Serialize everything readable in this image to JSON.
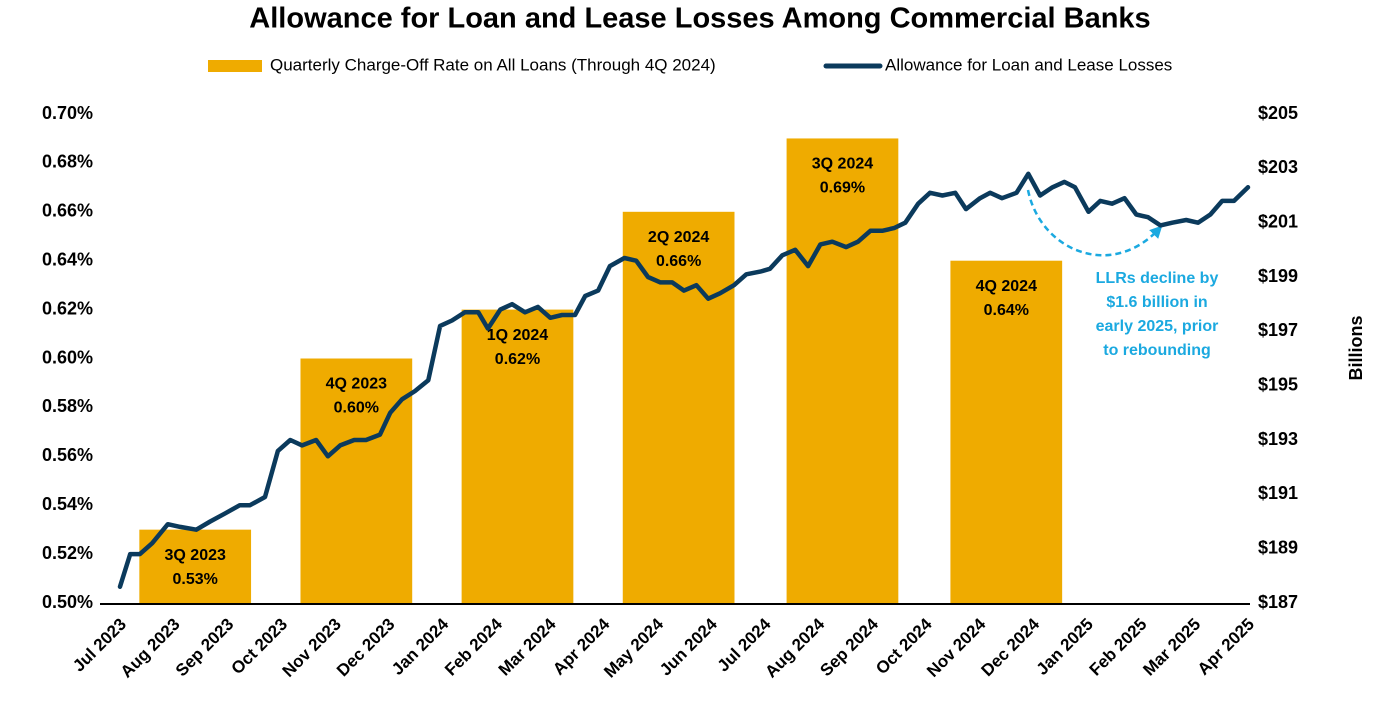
{
  "chart_data": {
    "type": "bar_line",
    "title": "Allowance for Loan and Lease Losses Among Commercial Banks",
    "legend": "top",
    "xlim": [
      0,
      21
    ],
    "xticks": [
      {
        "value": 0,
        "label": "Jul 2023"
      },
      {
        "value": 1,
        "label": "Aug 2023"
      },
      {
        "value": 2,
        "label": "Sep 2023"
      },
      {
        "value": 3,
        "label": "Oct 2023"
      },
      {
        "value": 4,
        "label": "Nov 2023"
      },
      {
        "value": 5,
        "label": "Dec 2023"
      },
      {
        "value": 6,
        "label": "Jan 2024"
      },
      {
        "value": 7,
        "label": "Feb 2024"
      },
      {
        "value": 8,
        "label": "Mar 2024"
      },
      {
        "value": 9,
        "label": "Apr 2024"
      },
      {
        "value": 10,
        "label": "May 2024"
      },
      {
        "value": 11,
        "label": "Jun 2024"
      },
      {
        "value": 12,
        "label": "Jul 2024"
      },
      {
        "value": 13,
        "label": "Aug 2024"
      },
      {
        "value": 14,
        "label": "Sep 2024"
      },
      {
        "value": 15,
        "label": "Oct 2024"
      },
      {
        "value": 16,
        "label": "Nov 2024"
      },
      {
        "value": 17,
        "label": "Dec 2024"
      },
      {
        "value": 18,
        "label": "Jan 2025"
      },
      {
        "value": 19,
        "label": "Feb 2025"
      },
      {
        "value": 20,
        "label": "Mar 2025"
      },
      {
        "value": 21,
        "label": "Apr 2025"
      }
    ],
    "ylim": [
      0.5,
      0.7
    ],
    "yticks": [
      {
        "value": 0.5,
        "label": "0.50%"
      },
      {
        "value": 0.52,
        "label": "0.52%"
      },
      {
        "value": 0.54,
        "label": "0.54%"
      },
      {
        "value": 0.56,
        "label": "0.56%"
      },
      {
        "value": 0.58,
        "label": "0.58%"
      },
      {
        "value": 0.6,
        "label": "0.60%"
      },
      {
        "value": 0.62,
        "label": "0.62%"
      },
      {
        "value": 0.64,
        "label": "0.64%"
      },
      {
        "value": 0.66,
        "label": "0.66%"
      },
      {
        "value": 0.68,
        "label": "0.68%"
      },
      {
        "value": 0.7,
        "label": "0.70%"
      }
    ],
    "y2lim": [
      187,
      205
    ],
    "y2ticks": [
      {
        "value": 187,
        "label": "$187"
      },
      {
        "value": 189,
        "label": "$189"
      },
      {
        "value": 191,
        "label": "$191"
      },
      {
        "value": 193,
        "label": "$193"
      },
      {
        "value": 195,
        "label": "$195"
      },
      {
        "value": 197,
        "label": "$197"
      },
      {
        "value": 199,
        "label": "$199"
      },
      {
        "value": 201,
        "label": "$201"
      },
      {
        "value": 203,
        "label": "$203"
      },
      {
        "value": 205,
        "label": "$205"
      }
    ],
    "y2label": "Billions",
    "annotation": {
      "lines": [
        "LLRs decline by",
        "$1.6 billion in",
        "early 2025, prior",
        "to rebounding"
      ],
      "color": "#1ba9e0"
    },
    "series": [
      {
        "name": "Quarterly Charge-Off Rate on All Loans (Through 4Q 2024)",
        "type": "bar",
        "color": "#efab00",
        "categories": [
          "3Q 2023",
          "4Q 2023",
          "1Q 2024",
          "2Q 2024",
          "3Q 2024",
          "4Q 2024"
        ],
        "x": [
          1.4,
          4.4,
          7.4,
          10.4,
          13.45,
          16.5
        ],
        "values": [
          0.53,
          0.6,
          0.62,
          0.66,
          0.69,
          0.64
        ],
        "value_labels": [
          "0.53%",
          "0.60%",
          "0.62%",
          "0.66%",
          "0.69%",
          "0.64%"
        ]
      },
      {
        "name": "Allowance for Loan and Lease Losses",
        "type": "line",
        "color": "#0b3a5c",
        "axis": "y2",
        "x": [
          0,
          0.19,
          0.37,
          0.6,
          0.89,
          1.12,
          1.42,
          1.68,
          1.96,
          2.23,
          2.42,
          2.7,
          2.94,
          3.17,
          3.39,
          3.65,
          3.87,
          4.1,
          4.36,
          4.58,
          4.84,
          5.03,
          5.25,
          5.49,
          5.74,
          5.96,
          6.18,
          6.42,
          6.67,
          6.85,
          7.08,
          7.3,
          7.54,
          7.78,
          8.01,
          8.23,
          8.47,
          8.66,
          8.9,
          9.12,
          9.39,
          9.61,
          9.83,
          10.06,
          10.28,
          10.5,
          10.73,
          10.95,
          11.17,
          11.43,
          11.66,
          11.92,
          12.1,
          12.33,
          12.57,
          12.81,
          13.04,
          13.26,
          13.52,
          13.74,
          13.97,
          14.19,
          14.41,
          14.62,
          14.86,
          15.08,
          15.31,
          15.55,
          15.75,
          16.01,
          16.2,
          16.42,
          16.69,
          16.91,
          17.13,
          17.36,
          17.58,
          17.78,
          18.03,
          18.25,
          18.47,
          18.7,
          18.92,
          19.14,
          19.37,
          19.59,
          19.85,
          20.07,
          20.3,
          20.52,
          20.74,
          21
        ],
        "values": [
          187.6,
          188.8,
          188.8,
          189.2,
          189.9,
          189.8,
          189.7,
          190.0,
          190.3,
          190.6,
          190.6,
          190.9,
          192.6,
          193.0,
          192.8,
          193.0,
          192.4,
          192.8,
          193.0,
          193.0,
          193.2,
          194.0,
          194.5,
          194.8,
          195.2,
          197.2,
          197.4,
          197.7,
          197.7,
          197.1,
          197.8,
          198.0,
          197.7,
          197.9,
          197.5,
          197.6,
          197.6,
          198.3,
          198.5,
          199.4,
          199.7,
          199.6,
          199.0,
          198.8,
          198.8,
          198.5,
          198.7,
          198.2,
          198.4,
          198.7,
          199.1,
          199.2,
          199.3,
          199.8,
          200.0,
          199.4,
          200.2,
          200.3,
          200.1,
          200.3,
          200.7,
          200.7,
          200.8,
          201.0,
          201.7,
          202.1,
          202.0,
          202.1,
          201.5,
          201.9,
          202.1,
          201.9,
          202.1,
          202.8,
          202.0,
          202.3,
          202.5,
          202.3,
          201.4,
          201.8,
          201.7,
          201.9,
          201.3,
          201.2,
          200.9,
          201.0,
          201.1,
          201.0,
          201.3,
          201.8,
          201.8,
          202.3
        ]
      }
    ]
  }
}
